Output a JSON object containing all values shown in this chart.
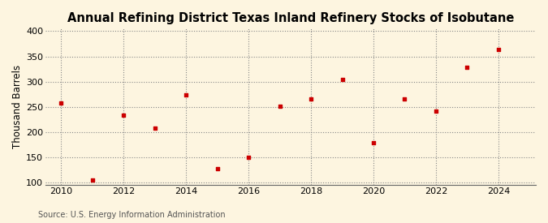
{
  "title": "Annual Refining District Texas Inland Refinery Stocks of Isobutane",
  "ylabel": "Thousand Barrels",
  "source": "Source: U.S. Energy Information Administration",
  "background_color": "#fdf5e0",
  "marker_color": "#cc0000",
  "years": [
    2010,
    2011,
    2012,
    2013,
    2014,
    2015,
    2016,
    2017,
    2018,
    2019,
    2020,
    2021,
    2022,
    2023,
    2024
  ],
  "values": [
    258,
    104,
    233,
    208,
    274,
    127,
    149,
    251,
    265,
    304,
    179,
    265,
    241,
    328,
    363
  ],
  "xlim": [
    2009.5,
    2025.2
  ],
  "ylim": [
    95,
    405
  ],
  "yticks": [
    100,
    150,
    200,
    250,
    300,
    350,
    400
  ],
  "xticks": [
    2010,
    2012,
    2014,
    2016,
    2018,
    2020,
    2022,
    2024
  ],
  "title_fontsize": 10.5,
  "label_fontsize": 8.5,
  "tick_fontsize": 8,
  "source_fontsize": 7
}
